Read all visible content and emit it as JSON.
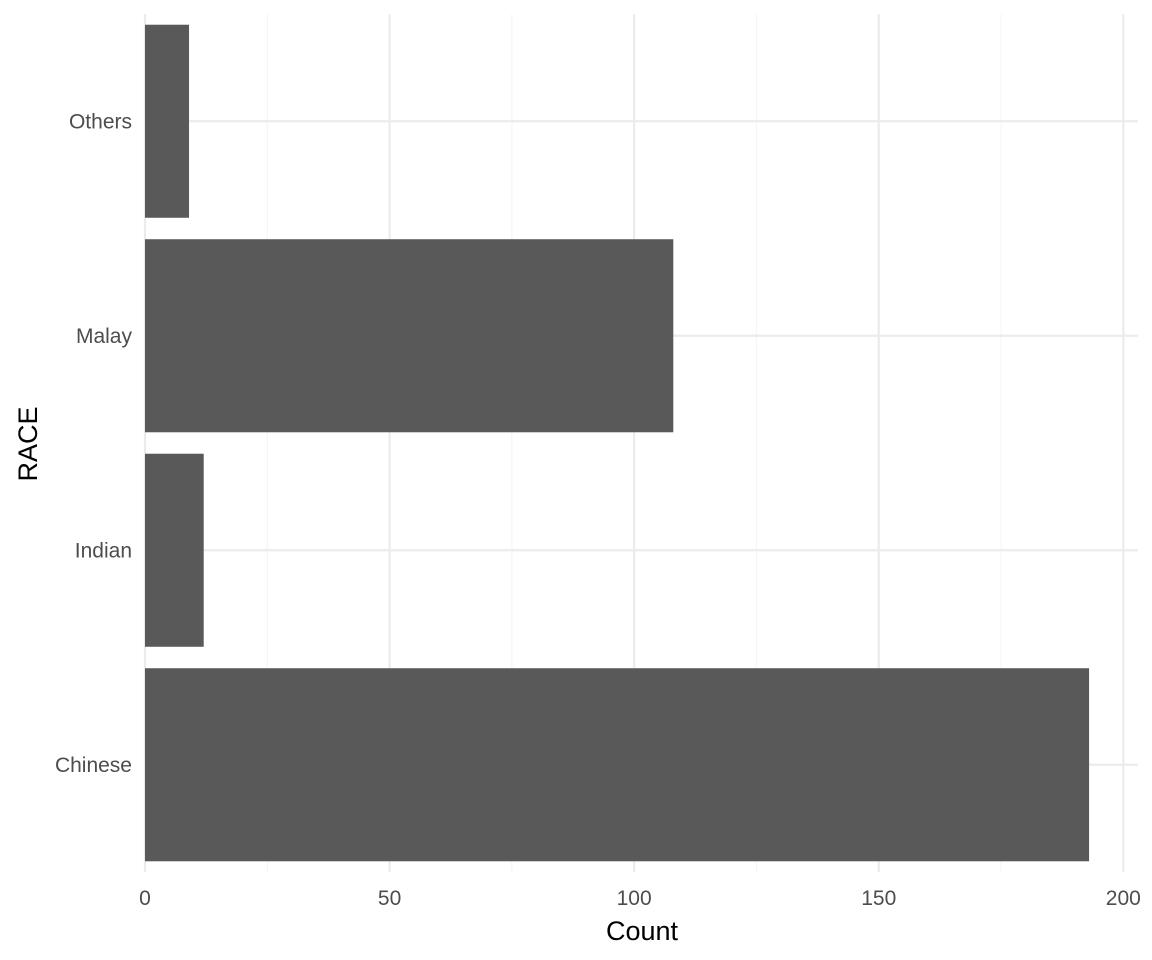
{
  "chart_data": {
    "type": "bar",
    "orientation": "horizontal",
    "categories": [
      "Chinese",
      "Indian",
      "Malay",
      "Others"
    ],
    "values": [
      193,
      12,
      108,
      9
    ],
    "xlabel": "Count",
    "ylabel": "RACE",
    "xlim": [
      0,
      203
    ],
    "x_ticks": [
      0,
      50,
      100,
      150,
      200
    ],
    "x_minor_ticks": [
      25,
      75,
      125,
      175
    ],
    "grid": true,
    "legend": "none",
    "colors": {
      "bar": "#595959",
      "grid_major": "#ebebeb",
      "grid_minor": "#f5f5f5",
      "tick_text": "#4d4d4d",
      "title_text": "#000000"
    }
  }
}
